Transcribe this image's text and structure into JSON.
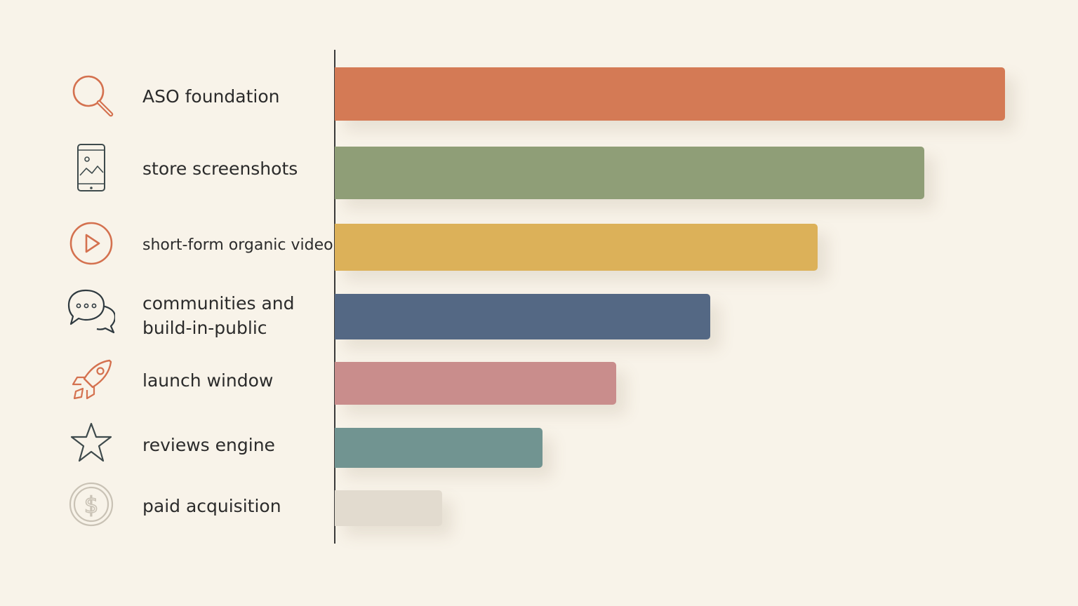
{
  "chart_data": {
    "type": "bar",
    "orientation": "horizontal",
    "title": "",
    "xlabel": "",
    "ylabel": "",
    "grid": false,
    "axis_tick_labels": false,
    "xlim": [
      0,
      100
    ],
    "categories": [
      "ASO foundation",
      "store screenshots",
      "short-form organic video",
      "communities and build-in-public",
      "launch window",
      "reviews engine",
      "paid acquisition"
    ],
    "values": [
      100,
      88,
      72,
      56,
      42,
      31,
      16
    ],
    "items": [
      {
        "label_lines": [
          "ASO foundation"
        ],
        "icon": "magnifier-icon",
        "color": "#d47a55",
        "value": 100
      },
      {
        "label_lines": [
          "store screenshots"
        ],
        "icon": "phone-screenshot-icon",
        "color": "#8f9e77",
        "value": 88
      },
      {
        "label_lines": [
          "short-form organic video"
        ],
        "icon": "play-circle-icon",
        "color": "#dcb159",
        "value": 72
      },
      {
        "label_lines": [
          "communities and",
          "build-in-public"
        ],
        "icon": "chat-bubbles-icon",
        "color": "#546884",
        "value": 56
      },
      {
        "label_lines": [
          "launch window"
        ],
        "icon": "rocket-icon",
        "color": "#c98d8c",
        "value": 42
      },
      {
        "label_lines": [
          "reviews engine"
        ],
        "icon": "star-icon",
        "color": "#719491",
        "value": 31
      },
      {
        "label_lines": [
          "paid acquisition"
        ],
        "icon": "dollar-coin-icon",
        "color": "#e2dbcf",
        "value": 16
      }
    ]
  }
}
